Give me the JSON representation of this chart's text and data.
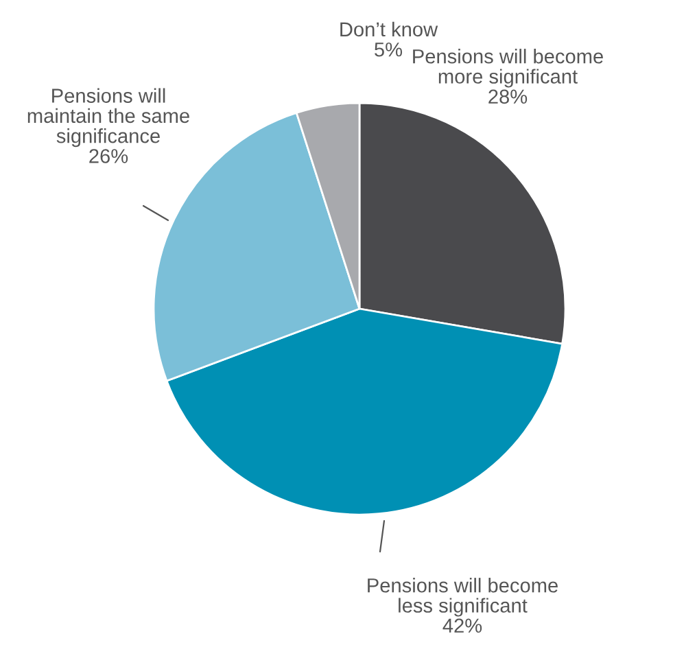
{
  "chart_data": {
    "type": "pie",
    "categories": [
      "Pensions will become\nmore significant",
      "Pensions will become\nless significant",
      "Pensions will\nmaintain the same\nsignificance",
      "Don’t know"
    ],
    "values": [
      28,
      42,
      26,
      5
    ],
    "value_labels": [
      "28%",
      "42%",
      "26%",
      "5%"
    ],
    "colors": [
      "#4a4a4d",
      "#0090b4",
      "#7bbfd8",
      "#a8a9ad"
    ],
    "legend": false
  }
}
